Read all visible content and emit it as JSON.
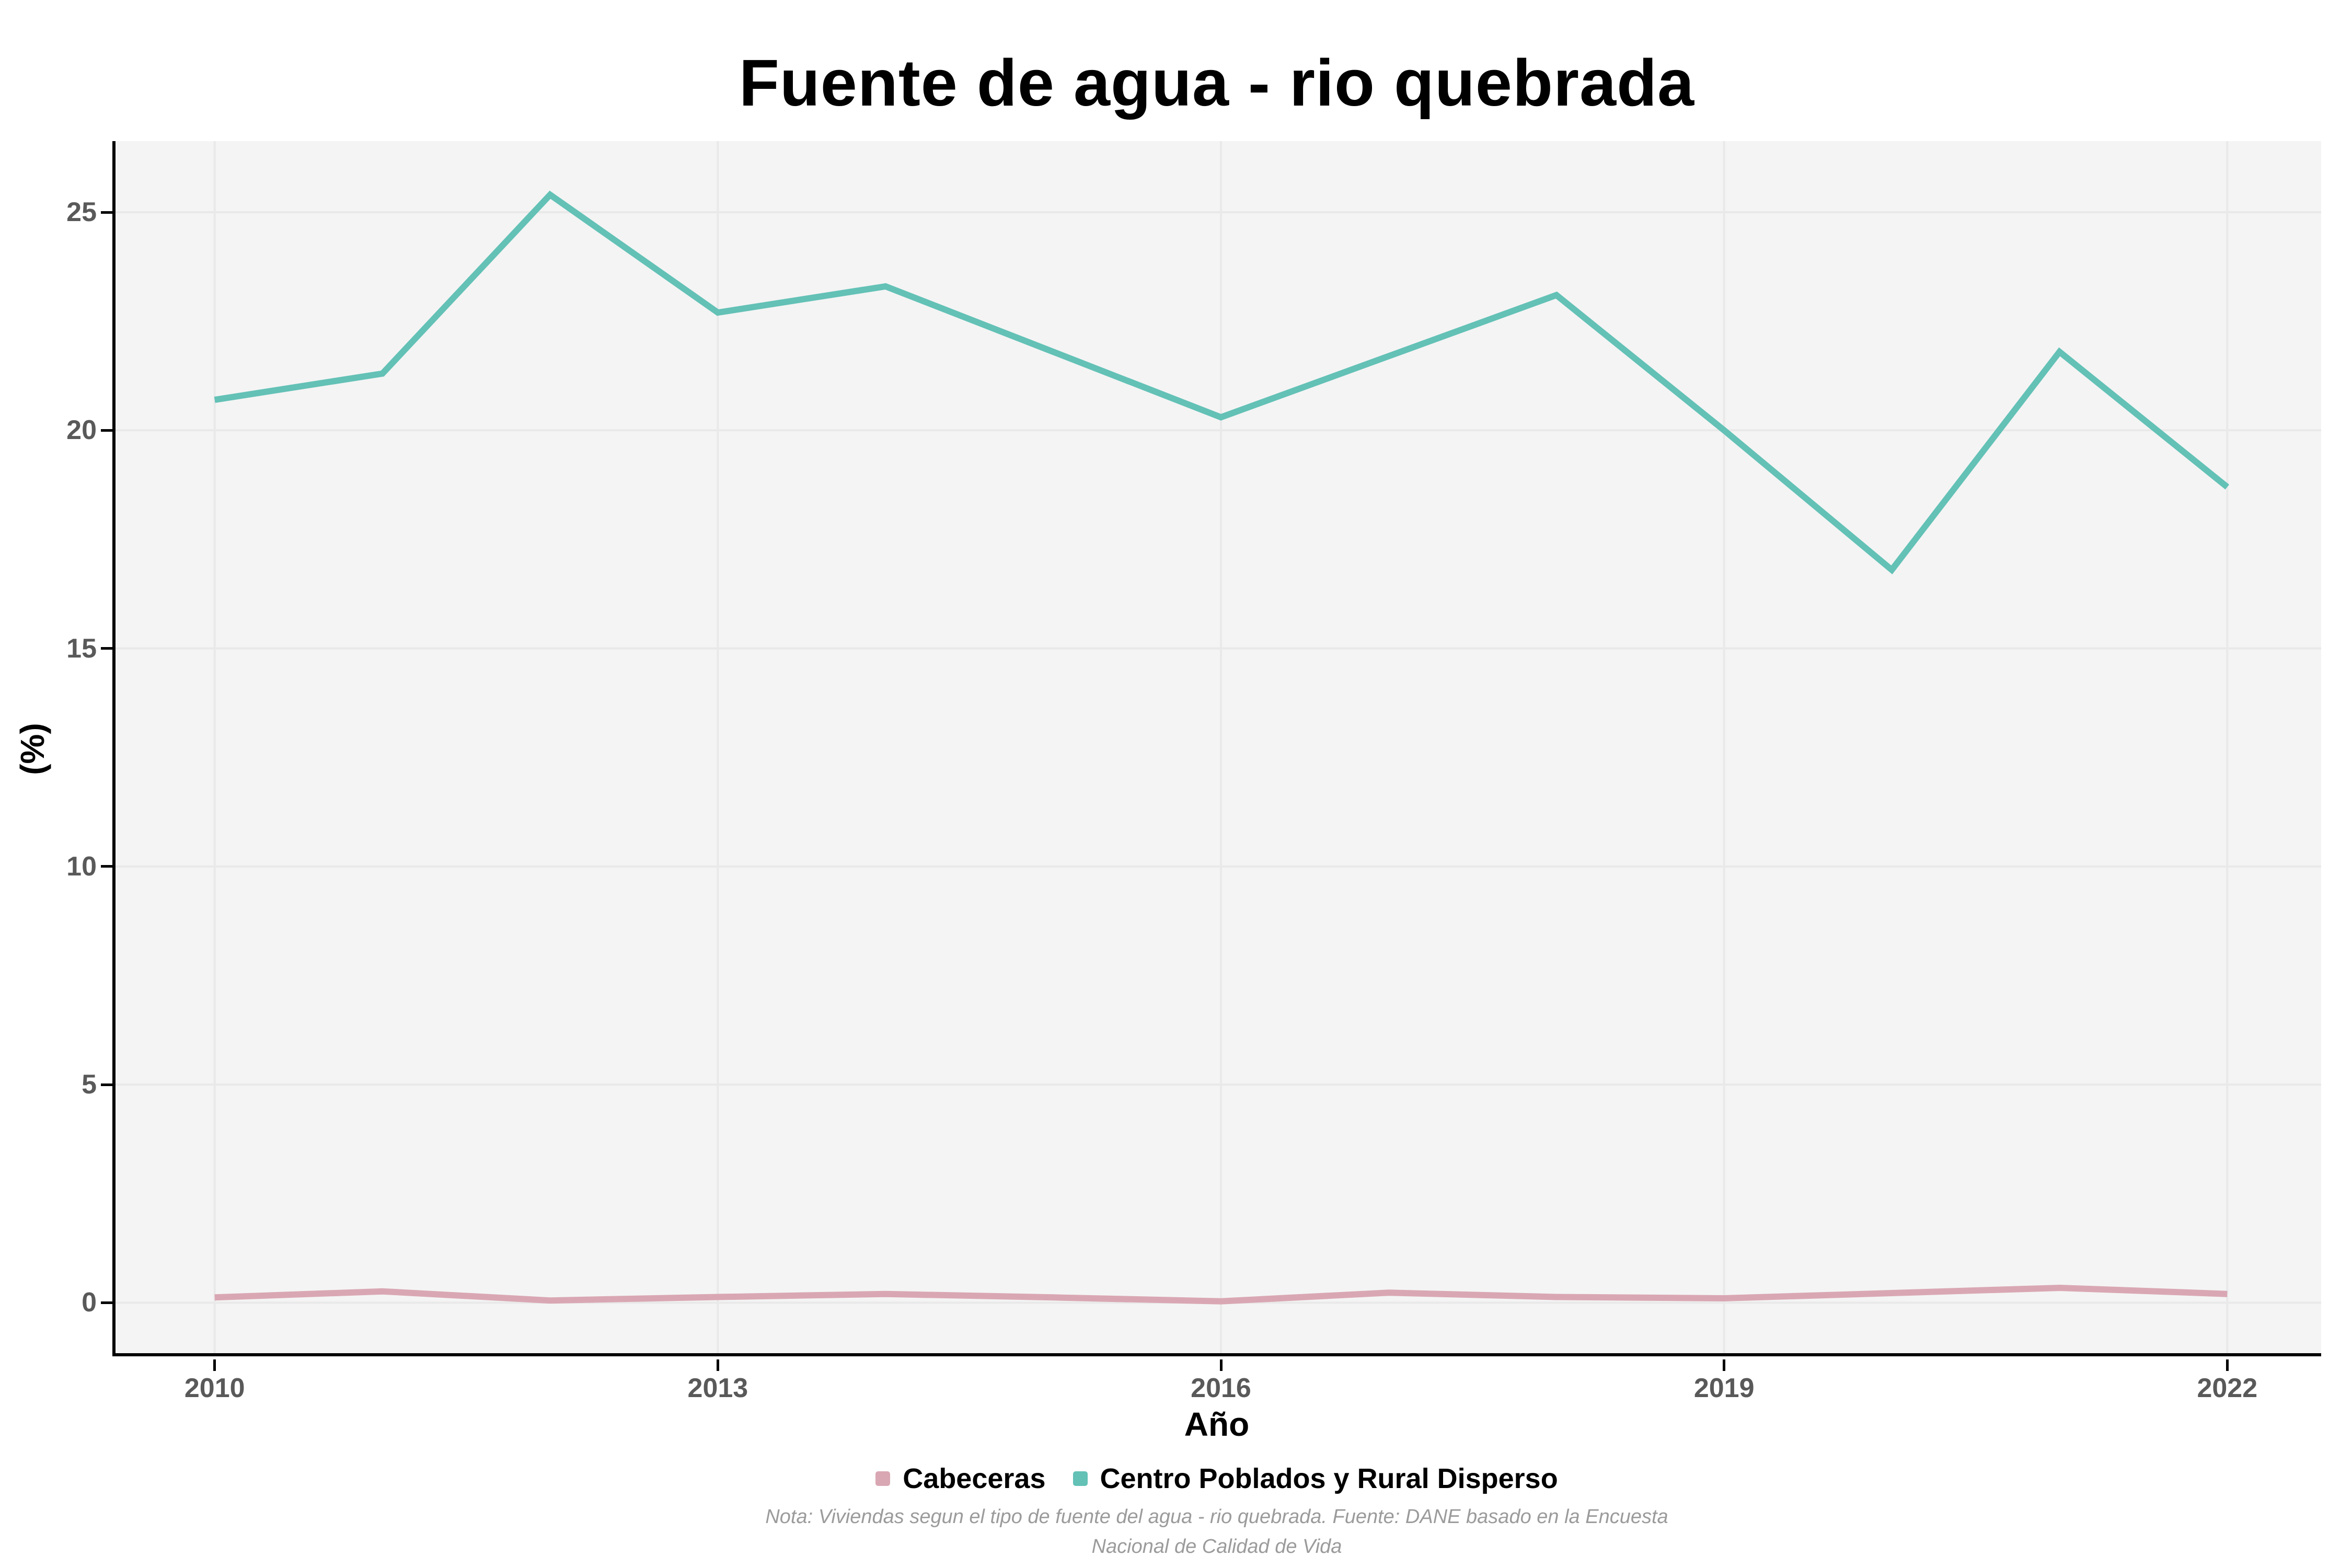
{
  "title": "Fuente de agua - rio quebrada",
  "axes": {
    "x": {
      "label": "Año",
      "ticks": [
        "2010",
        "2013",
        "2016",
        "2019",
        "2022"
      ],
      "tick_values": [
        2010,
        2013,
        2016,
        2019,
        2022
      ]
    },
    "y": {
      "label": "(%)",
      "ticks": [
        "0",
        "5",
        "10",
        "15",
        "20",
        "25"
      ],
      "tick_values": [
        0,
        5,
        10,
        15,
        20,
        25
      ]
    }
  },
  "legend": [
    {
      "label": "Cabeceras",
      "color": "#d9a7b3"
    },
    {
      "label": "Centro Poblados y Rural Disperso",
      "color": "#63c1b6"
    }
  ],
  "note_line1": "Nota: Viviendas segun el tipo de fuente del agua - rio quebrada. Fuente: DANE basado en la Encuesta",
  "note_line2": "Nacional de Calidad de Vida",
  "colors": {
    "panel_background": "#f4f4f4",
    "gridline": "#e9e9e9",
    "axis_line": "#000000",
    "tick_text": "#595959",
    "note_text": "#9b9b9b",
    "cabeceras": "#d9a7b3",
    "centro_poblados": "#63c1b6"
  },
  "chart_data": {
    "type": "line",
    "title": "Fuente de agua - rio quebrada",
    "xlabel": "Año",
    "ylabel": "(%)",
    "x": [
      2010,
      2011,
      2012,
      2013,
      2014,
      2015,
      2016,
      2017,
      2018,
      2019,
      2020,
      2021,
      2022
    ],
    "series": [
      {
        "name": "Cabeceras",
        "color": "#d9a7b3",
        "values": [
          0.12,
          0.26,
          0.05,
          0.13,
          0.2,
          0.12,
          0.03,
          0.23,
          0.13,
          0.1,
          0.22,
          0.34,
          0.2
        ]
      },
      {
        "name": "Centro Poblados y Rural Disperso",
        "color": "#63c1b6",
        "values": [
          20.7,
          21.3,
          25.4,
          22.7,
          23.3,
          21.8,
          20.3,
          21.7,
          23.1,
          20.0,
          16.8,
          21.8,
          18.7
        ]
      }
    ],
    "xlim": [
      2009.39,
      2022.56
    ],
    "ylim": [
      -1.23,
      26.63
    ],
    "xticks": [
      2010,
      2013,
      2016,
      2019,
      2022
    ],
    "yticks": [
      0,
      5,
      10,
      15,
      20,
      25
    ],
    "grid": "major",
    "legend_position": "bottom"
  }
}
